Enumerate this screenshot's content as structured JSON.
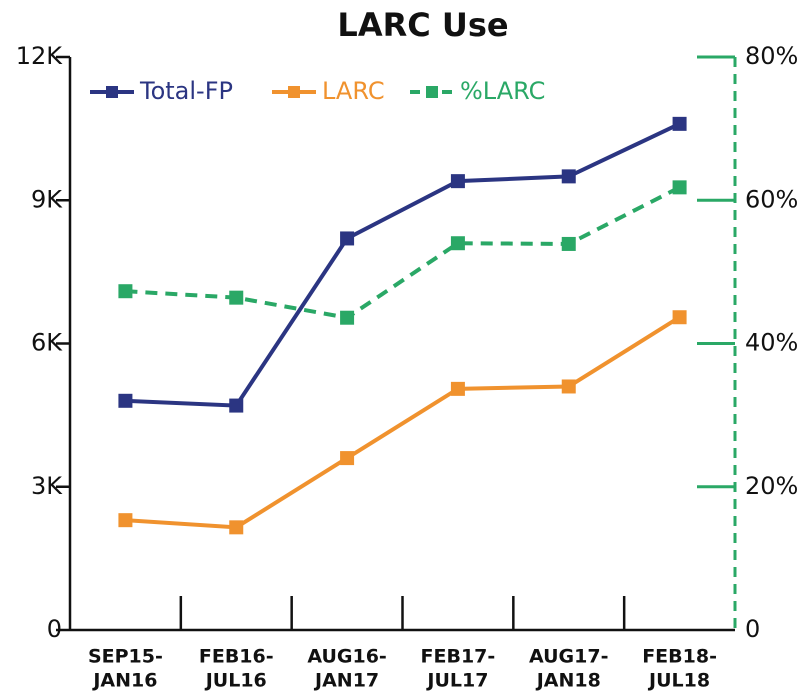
{
  "chart_data": {
    "type": "line",
    "title": "LARC Use",
    "categories": [
      [
        "SEP15-",
        "JAN16"
      ],
      [
        "FEB16-",
        "JUL16"
      ],
      [
        "AUG16-",
        "JAN17"
      ],
      [
        "FEB17-",
        "JUL17"
      ],
      [
        "AUG17-",
        "JAN18"
      ],
      [
        "FEB18-",
        "JUL18"
      ]
    ],
    "series": [
      {
        "name": "Total-FP",
        "color": "#2b3582",
        "values": [
          4800,
          4700,
          8200,
          9400,
          9500,
          10600
        ]
      },
      {
        "name": "LARC",
        "color": "#f0922e",
        "values": [
          2300,
          2150,
          3600,
          5050,
          5100,
          6550
        ]
      },
      {
        "name": "%LARC",
        "color": "#2aa866",
        "axis": "y2",
        "dashed": true,
        "values": [
          47.3,
          46.4,
          43.6,
          54.0,
          53.9,
          61.8
        ]
      }
    ],
    "ylim": [
      0,
      12000
    ],
    "yticks": [
      0,
      {
        "value": 3000,
        "label": "3K"
      },
      {
        "value": 6000,
        "label": "6K"
      },
      {
        "value": 9000,
        "label": "9K"
      },
      {
        "value": 12000,
        "label": "12K"
      }
    ],
    "y2lim": [
      0,
      80
    ],
    "y2ticks": [
      0,
      {
        "value": 20,
        "label": "20%"
      },
      {
        "value": 40,
        "label": "40%"
      },
      {
        "value": 60,
        "label": "60%"
      },
      {
        "value": 80,
        "label": "80%"
      }
    ],
    "legend": "top-left"
  }
}
